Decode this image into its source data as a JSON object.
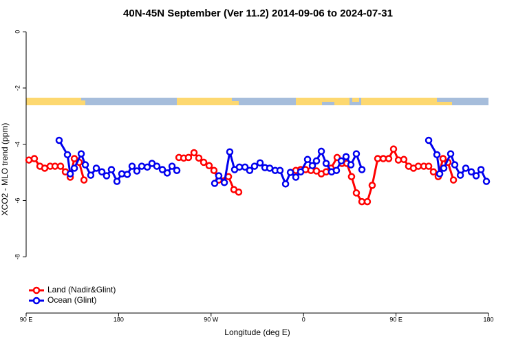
{
  "chart_data": {
    "type": "line",
    "title": "40N-45N September (Ver 11.2)   2014-09-06 to 2024-07-31",
    "x_label": "Longitude (deg E)",
    "y_label": "XCO2 - MLO trend (ppm)",
    "xlim": [
      90,
      540
    ],
    "ylim": [
      -10,
      0.2
    ],
    "xticks": [
      {
        "value": 90,
        "label": "90 E"
      },
      180,
      {
        "value": 270,
        "label": "90 W"
      },
      {
        "value": 360,
        "label": "0"
      },
      {
        "value": 450,
        "label": "90 E"
      },
      {
        "value": 540,
        "label": "180"
      }
    ],
    "yticks": [
      0,
      -2,
      -4,
      -6,
      -8
    ],
    "legend": "bottom-left",
    "series": [
      {
        "name": "Land (Nadir&Glint)",
        "color": "#ff0000",
        "x": [
          92.7,
          98.0,
          103.4,
          108.1,
          113.4,
          118.1,
          123.5,
          128.2,
          132.9,
          136.9,
          141.6,
          146.3,
          null,
          238.7,
          243.4,
          248.0,
          253.4,
          258.1,
          262.8,
          268.1,
          272.8,
          277.5,
          286.9,
          292.2,
          296.9,
          null,
          352.5,
          357.2,
          361.9,
          367.2,
          372.6,
          377.3,
          382.0,
          386.7,
          392.7,
          397.4,
          402.1,
          406.7,
          411.4,
          416.8,
          422.1,
          426.8,
          432.2,
          437.6,
          442.9,
          447.6,
          452.3,
          457.6,
          462.3,
          467.0,
          471.7,
          477.1,
          481.8,
          486.4,
          491.1,
          495.8,
          500.5,
          505.9
        ],
        "values": [
          -4.56,
          -4.51,
          -4.78,
          -4.85,
          -4.78,
          -4.78,
          -4.78,
          -4.98,
          -5.17,
          -4.51,
          -4.64,
          -5.27,
          null,
          -4.47,
          -4.49,
          -4.47,
          -4.3,
          -4.49,
          -4.64,
          -4.76,
          -4.93,
          -5.27,
          -5.15,
          -5.61,
          -5.7,
          null,
          -4.93,
          -4.9,
          -4.9,
          -4.93,
          -4.95,
          -5.05,
          -4.98,
          -4.85,
          -4.47,
          -4.68,
          -4.68,
          -5.15,
          -5.73,
          -6.04,
          -6.04,
          -5.46,
          -4.51,
          -4.51,
          -4.51,
          -4.17,
          -4.56,
          -4.54,
          -4.78,
          -4.85,
          -4.78,
          -4.78,
          -4.78,
          -4.98,
          -5.15,
          -4.51,
          -4.64,
          -5.27
        ]
      },
      {
        "name": "Ocean (Glint)",
        "color": "#0000ee",
        "x": [
          122.1,
          130.2,
          132.9,
          136.9,
          143.6,
          147.6,
          152.9,
          158.3,
          163.7,
          168.3,
          173.0,
          178.4,
          183.1,
          188.4,
          193.1,
          197.8,
          202.5,
          207.9,
          212.5,
          217.2,
          222.6,
          227.3,
          232.0,
          236.7,
          null,
          273.5,
          277.5,
          282.9,
          288.2,
          292.9,
          297.6,
          303.0,
          307.6,
          312.3,
          317.7,
          322.4,
          327.1,
          332.4,
          337.1,
          342.5,
          347.2,
          352.5,
          357.2,
          363.9,
          368.6,
          372.6,
          377.3,
          382.0,
          387.3,
          392.0,
          396.7,
          401.4,
          406.1,
          411.4,
          416.8,
          null,
          481.8,
          489.8,
          492.5,
          496.5,
          503.2,
          507.2,
          512.6,
          517.9,
          523.3,
          528.0,
          532.7,
          538.0
        ],
        "values": [
          -3.86,
          -4.37,
          -5.05,
          -4.85,
          -4.34,
          -4.73,
          -5.1,
          -4.85,
          -4.98,
          -5.12,
          -4.9,
          -5.32,
          -5.05,
          -5.07,
          -4.78,
          -4.95,
          -4.78,
          -4.81,
          -4.68,
          -4.78,
          -4.9,
          -5.02,
          -4.78,
          -4.93,
          null,
          -5.39,
          -5.12,
          -5.36,
          -4.27,
          -4.9,
          -4.81,
          -4.81,
          -4.93,
          -4.78,
          -4.66,
          -4.83,
          -4.85,
          -4.93,
          -4.93,
          -5.41,
          -5.0,
          -5.17,
          -4.98,
          -4.54,
          -4.76,
          -4.59,
          -4.25,
          -4.68,
          -4.98,
          -4.93,
          -4.59,
          -4.44,
          -4.73,
          -4.34,
          -4.9,
          null,
          -3.86,
          -4.37,
          -5.05,
          -4.85,
          -4.34,
          -4.73,
          -5.1,
          -4.85,
          -4.98,
          -5.12,
          -4.9,
          -5.32
        ]
      }
    ]
  }
}
